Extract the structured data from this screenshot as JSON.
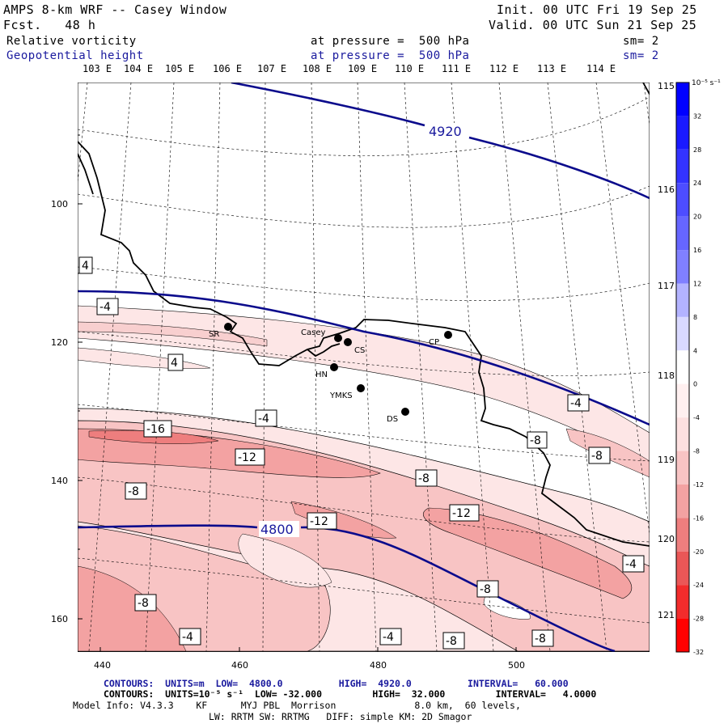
{
  "header": {
    "title": "AMPS 8-km WRF -- Casey Window",
    "fcst": "Fcst.   48 h",
    "init": "Init. 00 UTC Fri 19 Sep 25",
    "valid": "Valid. 00 UTC Sun 21 Sep 25",
    "field1": {
      "name": "Relative vorticity",
      "level": "at pressure =  500 hPa",
      "sm": "sm= 2"
    },
    "field2": {
      "name": "Geopotential height",
      "level": "at pressure =  500 hPa",
      "sm": "sm= 2"
    }
  },
  "axes": {
    "top_lon": [
      "103 E",
      "104 E",
      "105 E",
      "106 E",
      "107 E",
      "108 E",
      "109 E",
      "110 E",
      "111 E",
      "112 E",
      "113 E",
      "114 E"
    ],
    "right_lon": [
      "115 E",
      "116 E",
      "117 E",
      "118 E",
      "119 E",
      "120 E",
      "121 E"
    ],
    "y_ticks": [
      "100",
      "120",
      "140",
      "160"
    ],
    "x_ticks": [
      "440",
      "460",
      "480",
      "500"
    ]
  },
  "stations": [
    "SR",
    "Casey",
    "CS",
    "CP",
    "HN",
    "YMKS",
    "DS"
  ],
  "contour_labels": {
    "height": [
      "4920",
      "4800"
    ],
    "vorticity": [
      "4",
      "-4",
      "4",
      "-4",
      "-16",
      "-12",
      "-8",
      "-8",
      "-12",
      "-4",
      "-8",
      "-8",
      "-12",
      "-4",
      "-8",
      "-8",
      "-4",
      "-4",
      "-8",
      "-8"
    ]
  },
  "colorbar": {
    "unit": "10⁻⁵ s⁻¹",
    "labels": [
      "32",
      "28",
      "24",
      "20",
      "16",
      "12",
      "8",
      "4",
      "0",
      "-4",
      "-8",
      "-12",
      "-16",
      "-20",
      "-24",
      "-28",
      "-32"
    ],
    "colors": [
      "#0000ff",
      "#1a1aff",
      "#3333ff",
      "#4d4dff",
      "#6666ff",
      "#8080ff",
      "#b3b3ff",
      "#d9d9ff",
      "#ffffff",
      "#fff0f0",
      "#fde0e0",
      "#f8c4c4",
      "#f3a2a2",
      "#ee7e7e",
      "#ea5757",
      "#f22c2c",
      "#ff0000"
    ]
  },
  "footer": {
    "line1": "CONTOURS:  UNITS=m  LOW=  4800.0          HIGH=  4920.0          INTERVAL=   60.000",
    "line2": "CONTOURS:  UNITS=10⁻⁵ s⁻¹  LOW= -32.000         HIGH=  32.000         INTERVAL=   4.0000",
    "line3": "Model Info: V4.3.3    KF      MYJ PBL  Morrison              8.0 km,  60 levels,",
    "line4": "LW: RRTM SW: RRTMG   DIFF: simple KM: 2D Smagor"
  }
}
